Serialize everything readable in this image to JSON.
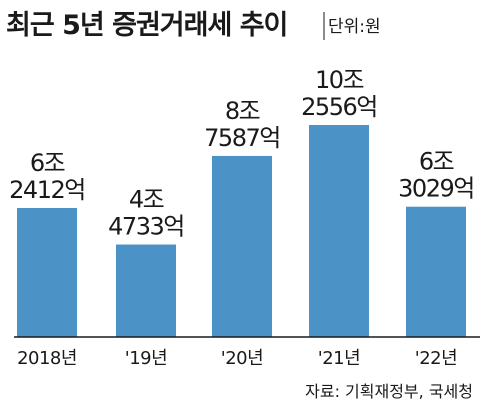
{
  "chart_data": {
    "type": "bar",
    "title": "최근 5년 증권거래세 추이",
    "unit_label": "단위:원",
    "source": "자료: 기획재정부, 국세청",
    "categories": [
      "2018년",
      "'19년",
      "'20년",
      "'21년",
      "'22년"
    ],
    "values": [
      62412,
      44733,
      87587,
      102556,
      63029
    ],
    "value_unit": "억",
    "value_labels": [
      [
        "6조",
        "2412억"
      ],
      [
        "4조",
        "4733억"
      ],
      [
        "8조",
        "7587억"
      ],
      [
        "10조",
        "2556억"
      ],
      [
        "6조",
        "3029억"
      ]
    ],
    "bar_color": "#4b93c6",
    "grid": false,
    "legend": "none"
  }
}
